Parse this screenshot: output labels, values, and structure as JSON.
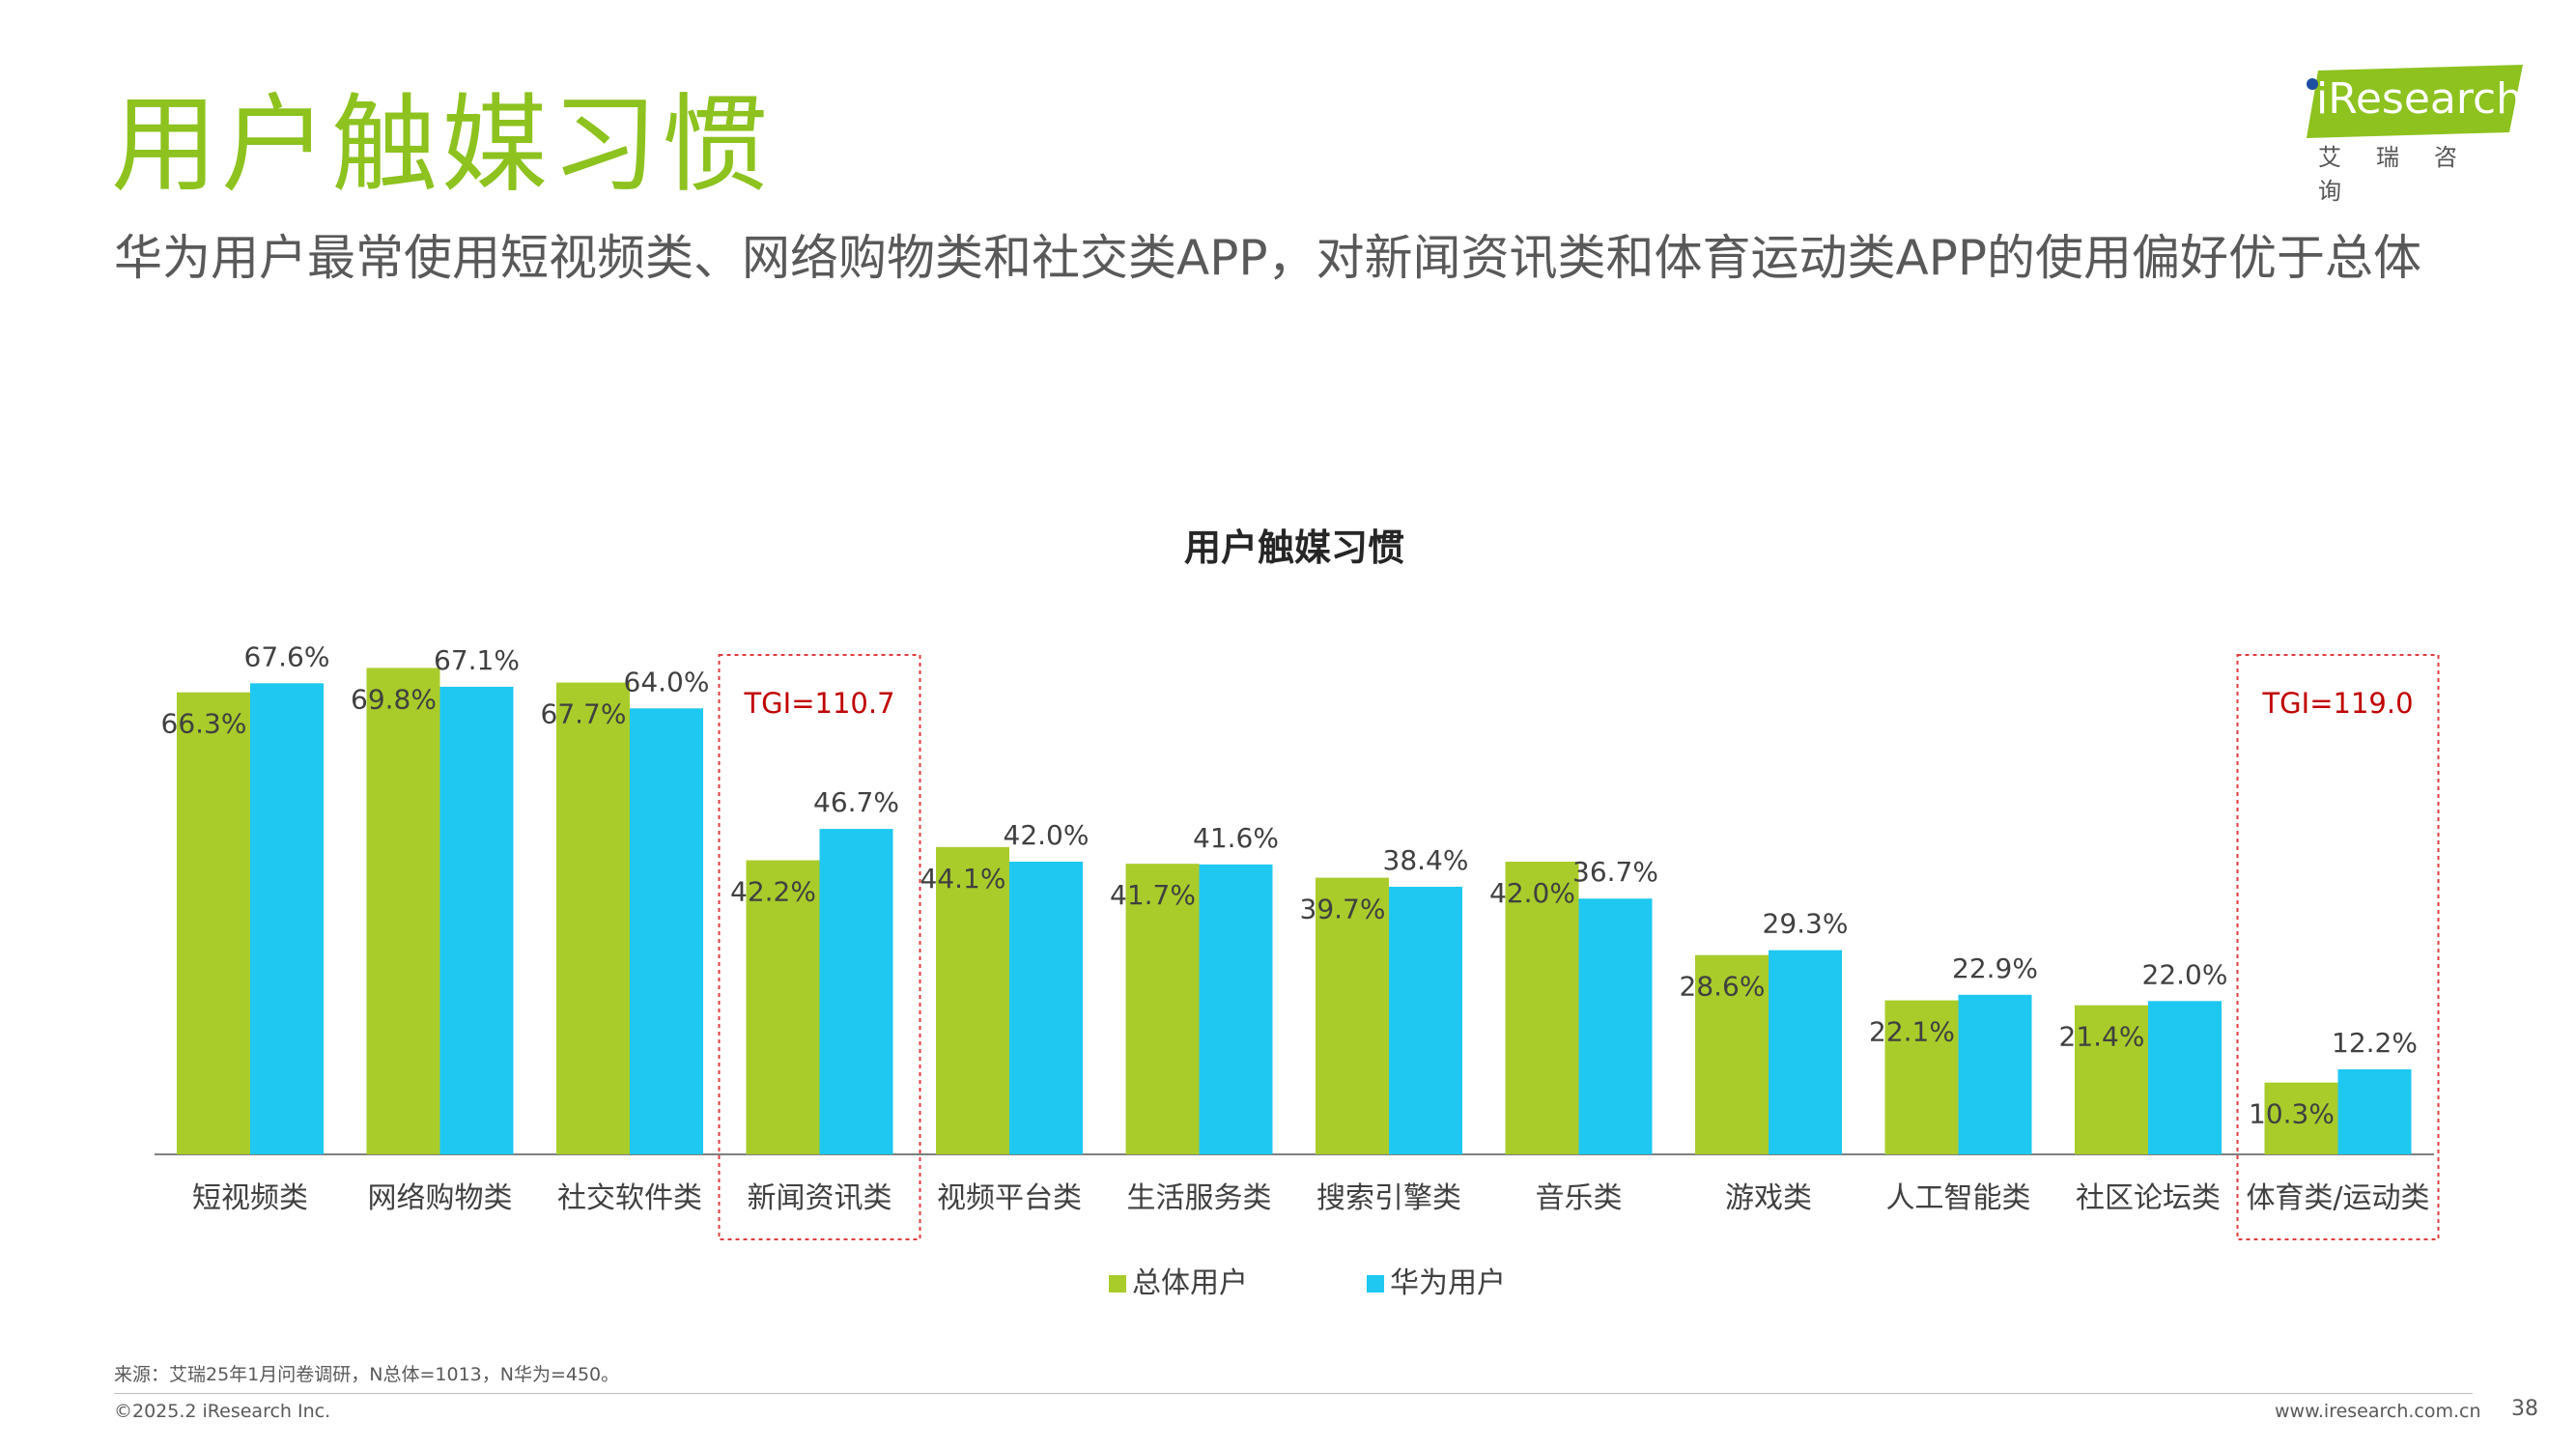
{
  "page": {
    "title": "用户触媒习惯",
    "subtitle": "华为用户最常使用短视频类、网络购物类和社交类APP，对新闻资讯类和体育运动类APP的使用偏好优于总体"
  },
  "logo": {
    "main": "iResearch",
    "sub": "艾瑞咨询"
  },
  "colors": {
    "title": "#8dc21f",
    "series_total": "#a9cc2b",
    "series_huawei": "#1ec8f0",
    "highlight_box": "#e03c3c",
    "tgi_text": "#c00000"
  },
  "chart_data": {
    "type": "bar",
    "title": "用户触媒习惯",
    "categories": [
      "短视频类",
      "网络购物类",
      "社交软件类",
      "新闻资讯类",
      "视频平台类",
      "生活服务类",
      "搜索引擎类",
      "音乐类",
      "游戏类",
      "人工智能类",
      "社区论坛类",
      "体育类/运动类"
    ],
    "series": [
      {
        "name": "总体用户",
        "values": [
          66.3,
          69.8,
          67.7,
          42.2,
          44.1,
          41.7,
          39.7,
          42.0,
          28.6,
          22.1,
          21.4,
          10.3
        ],
        "labels": [
          "66.3%",
          "69.8%",
          "67.7%",
          "42.2%",
          "44.1%",
          "41.7%",
          "39.7%",
          "42.0%",
          "28.6%",
          "22.1%",
          "21.4%",
          "10.3%"
        ]
      },
      {
        "name": "华为用户",
        "values": [
          67.6,
          67.1,
          64.0,
          46.7,
          42.0,
          41.6,
          38.4,
          36.7,
          29.3,
          22.9,
          22.0,
          12.2
        ],
        "labels": [
          "67.6%",
          "67.1%",
          "64.0%",
          "46.7%",
          "42.0%",
          "41.6%",
          "38.4%",
          "36.7%",
          "29.3%",
          "22.9%",
          "22.0%",
          "12.2%"
        ]
      }
    ],
    "ylim": [
      0,
      70
    ],
    "grid": false,
    "legend_placement": "bottom-center",
    "annotations": [
      {
        "category": "新闻资讯类",
        "text": "TGI=110.7"
      },
      {
        "category": "体育类/运动类",
        "text": "TGI=119.0"
      }
    ]
  },
  "footer": {
    "source": "来源：艾瑞25年1月问卷调研，N总体=1013，N华为=450。",
    "copyright": "©2025.2 iResearch Inc.",
    "website": "www.iresearch.com.cn",
    "page_number": "38"
  }
}
